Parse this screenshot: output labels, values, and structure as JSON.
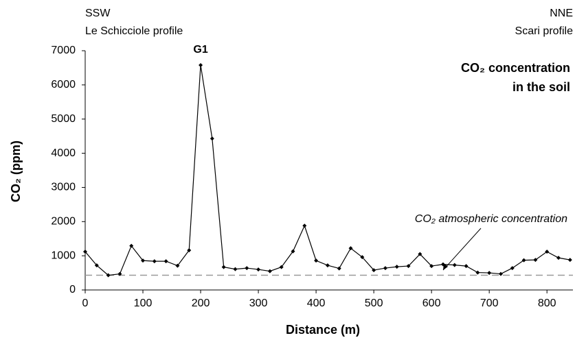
{
  "chart_data": {
    "type": "line",
    "title": [
      "CO₂ concentration",
      "in the soil"
    ],
    "left_label": [
      "SSW",
      "Le Schicciole profile"
    ],
    "right_label": [
      "NNE",
      "Scari profile"
    ],
    "x_label": "Distance (m)",
    "y_label": "CO₂ (ppm)",
    "peak_label": "G1",
    "x": [
      0,
      20,
      40,
      60,
      80,
      100,
      120,
      140,
      160,
      180,
      200,
      220,
      240,
      260,
      280,
      300,
      320,
      340,
      360,
      380,
      400,
      420,
      440,
      460,
      480,
      500,
      520,
      540,
      560,
      580,
      600,
      620,
      640,
      660,
      680,
      700,
      720,
      740,
      760,
      780,
      800,
      820,
      840
    ],
    "series": [
      {
        "name": "CO₂ concentration in the soil",
        "color": "#000000",
        "values": [
          1120,
          720,
          430,
          470,
          1290,
          860,
          840,
          840,
          710,
          1160,
          6580,
          4430,
          670,
          610,
          640,
          600,
          550,
          670,
          1130,
          1880,
          860,
          720,
          630,
          1220,
          960,
          580,
          640,
          680,
          700,
          1050,
          700,
          750,
          730,
          700,
          510,
          500,
          470,
          640,
          870,
          880,
          1120,
          940,
          880
        ]
      }
    ],
    "reference_line": {
      "value": 430,
      "label": "CO₂ atmospheric concentration",
      "color": "#999999"
    },
    "xlim": [
      0,
      845
    ],
    "ylim": [
      0,
      7000
    ],
    "xticks": [
      0,
      100,
      200,
      300,
      400,
      500,
      600,
      700,
      800
    ],
    "yticks": [
      0,
      1000,
      2000,
      3000,
      4000,
      5000,
      6000,
      7000
    ]
  }
}
